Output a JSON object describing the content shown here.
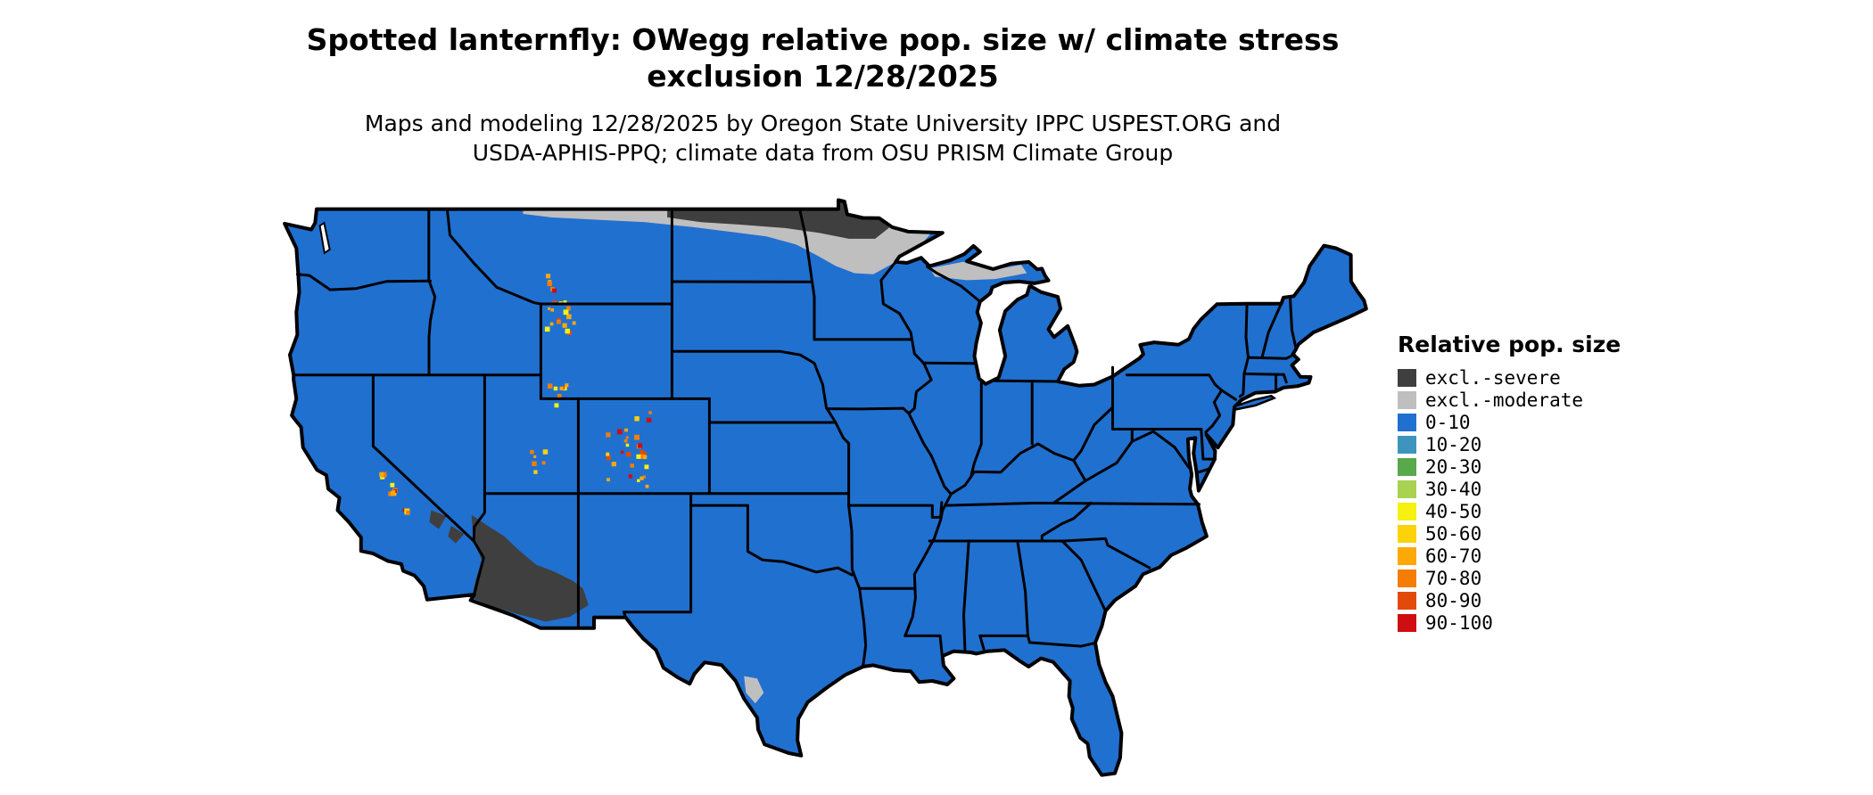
{
  "title": {
    "line1": "Spotted lanternfly: OWegg relative pop. size w/ climate stress",
    "line2": "exclusion 12/28/2025"
  },
  "subtitle": {
    "line1": "Maps and modeling 12/28/2025 by Oregon State University IPPC USPEST.ORG and",
    "line2": "USDA-APHIS-PPQ; climate data from OSU PRISM Climate Group"
  },
  "legend": {
    "title": "Relative pop. size",
    "items": [
      {
        "label": "excl.-severe",
        "color": "#3f3f3f"
      },
      {
        "label": "excl.-moderate",
        "color": "#bfbfbf"
      },
      {
        "label": "0-10",
        "color": "#2070d0"
      },
      {
        "label": "10-20",
        "color": "#3d95be"
      },
      {
        "label": "20-30",
        "color": "#58a84c"
      },
      {
        "label": "30-40",
        "color": "#a8d24f"
      },
      {
        "label": "40-50",
        "color": "#f6f110"
      },
      {
        "label": "50-60",
        "color": "#fcd20a"
      },
      {
        "label": "60-70",
        "color": "#fca908"
      },
      {
        "label": "70-80",
        "color": "#f57d06"
      },
      {
        "label": "80-90",
        "color": "#e24a0a"
      },
      {
        "label": "90-100",
        "color": "#ce0e10"
      }
    ]
  },
  "map": {
    "region": "Contiguous United States",
    "base_category": "0-10",
    "visible_features": [
      {
        "name": "northern-border-band",
        "category": "excl.-moderate"
      },
      {
        "name": "north-dakota-minnesota-band",
        "category": "excl.-severe"
      },
      {
        "name": "southwest-arizona-region",
        "category": "excl.-severe"
      },
      {
        "name": "upper-great-lakes-patch",
        "category": "excl.-moderate"
      },
      {
        "name": "south-texas-border-patch",
        "category": "excl.-moderate"
      },
      {
        "name": "rocky-mountain-hotspots",
        "category": "scattered 40-100"
      },
      {
        "name": "sierra-nevada-hotspots",
        "category": "scattered 40-100"
      }
    ]
  }
}
